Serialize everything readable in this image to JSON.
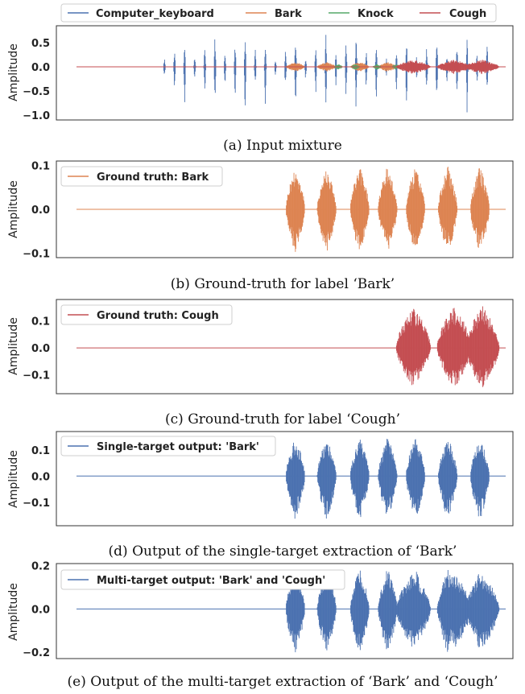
{
  "figure": {
    "top_legend": [
      {
        "label": "Computer_keyboard",
        "color": "#4c72b0"
      },
      {
        "label": "Bark",
        "color": "#dd8452"
      },
      {
        "label": "Knock",
        "color": "#55a868"
      },
      {
        "label": "Cough",
        "color": "#c44e52"
      }
    ]
  },
  "chart_data": [
    {
      "type": "line",
      "caption": "(a) Input mixture",
      "ylabel": "Amplitude",
      "ylim": [
        -1.1,
        0.85
      ],
      "yticks": [
        0.5,
        0.0,
        -0.5,
        -1.0
      ],
      "ytick_labels": [
        "0.5",
        "0.0",
        "−0.5",
        "−1.0"
      ],
      "legend": "top",
      "series": [
        {
          "name": "Computer_keyboard",
          "color": "#4c72b0",
          "signal": "keyboard",
          "peak": 0.8,
          "trough": -1.0
        },
        {
          "name": "Bark",
          "color": "#dd8452",
          "signal": "bark",
          "peak": 0.1,
          "trough": -0.1
        },
        {
          "name": "Knock",
          "color": "#55a868",
          "signal": "knock",
          "peak": 0.06,
          "trough": -0.06
        },
        {
          "name": "Cough",
          "color": "#c44e52",
          "signal": "cough",
          "peak": 0.15,
          "trough": -0.15
        }
      ]
    },
    {
      "type": "line",
      "caption": "(b) Ground-truth for label ‘Bark’",
      "ylabel": "Amplitude",
      "ylim": [
        -0.11,
        0.11
      ],
      "yticks": [
        0.1,
        0.0,
        -0.1
      ],
      "ytick_labels": [
        "0.1",
        "0.0",
        "−0.1"
      ],
      "legend": "top-left",
      "series": [
        {
          "name": "Ground truth: Bark",
          "color": "#dd8452",
          "signal": "bark",
          "peak": 0.1,
          "trough": -0.1
        }
      ]
    },
    {
      "type": "line",
      "caption": "(c) Ground-truth for label ‘Cough’",
      "ylabel": "Amplitude",
      "ylim": [
        -0.17,
        0.18
      ],
      "yticks": [
        0.1,
        0.0,
        -0.1
      ],
      "ytick_labels": [
        "0.1",
        "0.0",
        "−0.1"
      ],
      "legend": "top-left",
      "series": [
        {
          "name": "Ground truth: Cough",
          "color": "#c44e52",
          "signal": "cough",
          "peak": 0.16,
          "trough": -0.15
        }
      ]
    },
    {
      "type": "line",
      "caption": "(d) Output of the single-target extraction of ‘Bark’",
      "ylabel": "Amplitude",
      "ylim": [
        -0.19,
        0.17
      ],
      "yticks": [
        0.1,
        0.0,
        -0.1
      ],
      "ytick_labels": [
        "0.1",
        "0.0",
        "−0.1"
      ],
      "legend": "top-left",
      "series": [
        {
          "name": "Single-target output: 'Bark'",
          "color": "#4c72b0",
          "signal": "bark",
          "peak": 0.15,
          "trough": -0.17
        }
      ]
    },
    {
      "type": "line",
      "caption": "(e) Output of the multi-target extraction of ‘Bark’ and ‘Cough’",
      "ylabel": "Amplitude",
      "ylim": [
        -0.23,
        0.21
      ],
      "yticks": [
        0.2,
        0.0,
        -0.2
      ],
      "ytick_labels": [
        "0.2",
        "0.0",
        "−0.2"
      ],
      "legend": "top-left",
      "series": [
        {
          "name": "Multi-target output: 'Bark' and 'Cough'",
          "color": "#4c72b0",
          "signal": "bark+cough",
          "peak": 0.19,
          "trough": -0.21
        }
      ]
    }
  ]
}
